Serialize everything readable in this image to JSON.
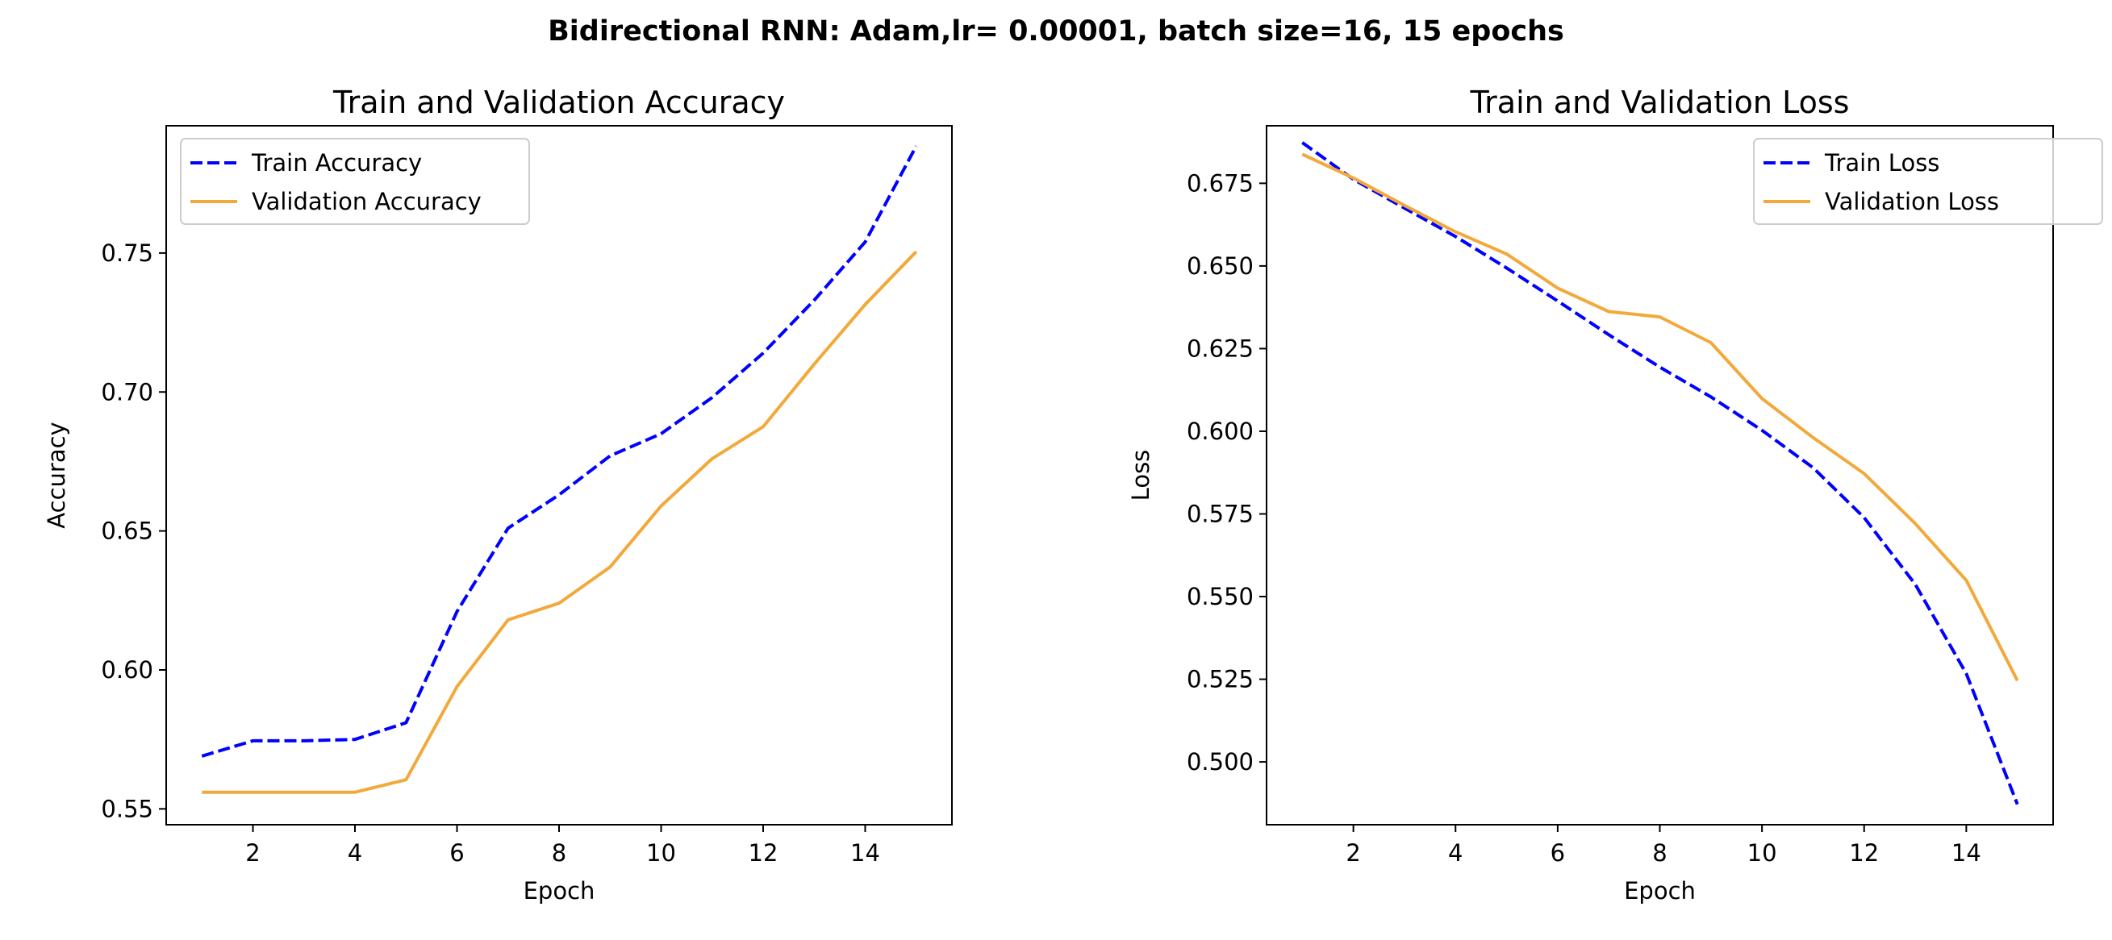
{
  "figure": {
    "suptitle": "Bidirectional RNN: Adam,lr= 0.00001, batch size=16, 15 epochs"
  },
  "colors": {
    "train": "#0000ff",
    "validation": "#f2a93b",
    "axes": "#000000",
    "background": "#ffffff"
  },
  "chart_data": [
    {
      "type": "line",
      "title": "Train and Validation Accuracy",
      "xlabel": "Epoch",
      "ylabel": "Accuracy",
      "xlim": [
        0.3,
        15.7
      ],
      "ylim": [
        0.5443,
        0.7958
      ],
      "xticks": [
        2,
        4,
        6,
        8,
        10,
        12,
        14
      ],
      "xtick_labels": [
        "2",
        "4",
        "6",
        "8",
        "10",
        "12",
        "14"
      ],
      "yticks": [
        0.55,
        0.6,
        0.65,
        0.7,
        0.75
      ],
      "ytick_labels": [
        "0.55",
        "0.60",
        "0.65",
        "0.70",
        "0.75"
      ],
      "grid": false,
      "legend_position": "top-left",
      "x": [
        1,
        2,
        3,
        4,
        5,
        6,
        7,
        8,
        9,
        10,
        11,
        12,
        13,
        14,
        15
      ],
      "series": [
        {
          "name": "Train Accuracy",
          "style": "dashed",
          "color": "#0000ff",
          "values": [
            0.569,
            0.5745,
            0.5745,
            0.575,
            0.581,
            0.621,
            0.651,
            0.663,
            0.677,
            0.685,
            0.698,
            0.714,
            0.733,
            0.754,
            0.7885
          ]
        },
        {
          "name": "Validation Accuracy",
          "style": "solid",
          "color": "#f2a93b",
          "values": [
            0.556,
            0.556,
            0.556,
            0.556,
            0.5605,
            0.594,
            0.618,
            0.624,
            0.637,
            0.659,
            0.676,
            0.6875,
            0.71,
            0.7315,
            0.7505
          ]
        }
      ]
    },
    {
      "type": "line",
      "title": "Train and Validation Loss",
      "xlabel": "Epoch",
      "ylabel": "Loss",
      "xlim": [
        0.3,
        15.7
      ],
      "ylim": [
        0.481,
        0.6924
      ],
      "xticks": [
        2,
        4,
        6,
        8,
        10,
        12,
        14
      ],
      "xtick_labels": [
        "2",
        "4",
        "6",
        "8",
        "10",
        "12",
        "14"
      ],
      "yticks": [
        0.5,
        0.525,
        0.55,
        0.575,
        0.6,
        0.625,
        0.65,
        0.675
      ],
      "ytick_labels": [
        "0.500",
        "0.525",
        "0.550",
        "0.575",
        "0.600",
        "0.625",
        "0.650",
        "0.675"
      ],
      "grid": false,
      "legend_position": "top-right",
      "x": [
        1,
        2,
        3,
        4,
        5,
        6,
        7,
        8,
        9,
        10,
        11,
        12,
        13,
        14,
        15
      ],
      "series": [
        {
          "name": "Train Loss",
          "style": "dashed",
          "color": "#0000ff",
          "values": [
            0.6873,
            0.6762,
            0.6675,
            0.6589,
            0.6494,
            0.6394,
            0.6292,
            0.6194,
            0.6104,
            0.6003,
            0.589,
            0.5739,
            0.5537,
            0.5267,
            0.4872
          ]
        },
        {
          "name": "Validation Loss",
          "style": "solid",
          "color": "#f2a93b",
          "values": [
            0.6838,
            0.6766,
            0.6683,
            0.6603,
            0.6536,
            0.6433,
            0.6362,
            0.6346,
            0.6268,
            0.6099,
            0.5981,
            0.5872,
            0.5721,
            0.5549,
            0.5246
          ]
        }
      ]
    }
  ]
}
